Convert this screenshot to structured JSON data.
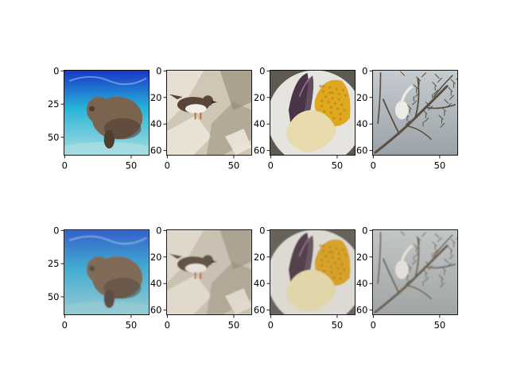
{
  "figure": {
    "rows": 2,
    "cols": 4
  },
  "chart_data": [
    {
      "type": "image",
      "content": "manatee underwater",
      "row": 1,
      "col": 1,
      "xticks": [
        "0",
        "50"
      ],
      "yticks": [
        "0",
        "25",
        "50"
      ],
      "xlim": [
        -0.5,
        63.5
      ],
      "ylim": [
        63.5,
        -0.5
      ],
      "colors": {
        "top": "#1836c8",
        "mid": "#28b4d8",
        "bottom": "#a8dce0",
        "subject": "#7a6450",
        "subject_shadow": "#4e3e30"
      }
    },
    {
      "type": "image",
      "content": "shorebird on rocks",
      "row": 1,
      "col": 2,
      "xticks": [
        "0",
        "50"
      ],
      "yticks": [
        "0",
        "20",
        "40",
        "60"
      ],
      "xlim": [
        -0.5,
        63.5
      ],
      "ylim": [
        63.5,
        -0.5
      ],
      "colors": {
        "background": "#cfc6b6",
        "rock_dark": "#8f8470",
        "rock_light": "#ece6da",
        "bird": "#5a4638",
        "bird_belly": "#f2efe8"
      }
    },
    {
      "type": "image",
      "content": "plate with food",
      "row": 1,
      "col": 3,
      "xticks": [
        "0",
        "50"
      ],
      "yticks": [
        "0",
        "20",
        "40",
        "60"
      ],
      "xlim": [
        -0.5,
        63.5
      ],
      "ylim": [
        63.5,
        -0.5
      ],
      "colors": {
        "background": "#5e5a52",
        "plate": "#e6e4de",
        "eggplant": "#4a3448",
        "corn": "#e0a820",
        "rice": "#e8dcae"
      }
    },
    {
      "type": "image",
      "content": "dry tree branches",
      "row": 1,
      "col": 4,
      "xticks": [
        "0",
        "50"
      ],
      "yticks": [
        "0",
        "20",
        "40",
        "60"
      ],
      "xlim": [
        -0.5,
        63.5
      ],
      "ylim": [
        63.5,
        -0.5
      ],
      "colors": {
        "sky": "#c6ccd0",
        "sky_bottom": "#9aa2a8",
        "branch": "#5a4e40",
        "bird": "#ecebe6"
      }
    },
    {
      "type": "image",
      "content": "manatee underwater (reconstruction)",
      "row": 2,
      "col": 1,
      "xticks": [
        "0",
        "50"
      ],
      "yticks": [
        "0",
        "25",
        "50"
      ],
      "xlim": [
        -0.5,
        63.5
      ],
      "ylim": [
        63.5,
        -0.5
      ],
      "colors": {
        "top": "#2a58c8",
        "mid": "#38a8d0",
        "bottom": "#90c8d0",
        "subject": "#7a6450",
        "subject_shadow": "#55453a"
      }
    },
    {
      "type": "image",
      "content": "shorebird on rocks (reconstruction)",
      "row": 2,
      "col": 2,
      "xticks": [
        "0",
        "50"
      ],
      "yticks": [
        "0",
        "20",
        "40",
        "60"
      ],
      "xlim": [
        -0.5,
        63.5
      ],
      "ylim": [
        63.5,
        -0.5
      ],
      "colors": {
        "background": "#cbc1b2",
        "rock_dark": "#958a78",
        "rock_light": "#e4ddd0",
        "bird": "#64524a",
        "bird_belly": "#e6e2da"
      }
    },
    {
      "type": "image",
      "content": "plate with food (reconstruction)",
      "row": 2,
      "col": 3,
      "xticks": [
        "0",
        "50"
      ],
      "yticks": [
        "0",
        "20",
        "40",
        "60"
      ],
      "xlim": [
        -0.5,
        63.5
      ],
      "ylim": [
        63.5,
        -0.5
      ],
      "colors": {
        "background": "#67625a",
        "plate": "#dcdad2",
        "eggplant": "#54404e",
        "corn": "#d6a22a",
        "rice": "#e0d6aa"
      }
    },
    {
      "type": "image",
      "content": "dry tree branches (reconstruction)",
      "row": 2,
      "col": 4,
      "xticks": [
        "0",
        "50"
      ],
      "yticks": [
        "0",
        "20",
        "40",
        "60"
      ],
      "xlim": [
        -0.5,
        63.5
      ],
      "ylim": [
        63.5,
        -0.5
      ],
      "colors": {
        "sky": "#c2c6c6",
        "sky_bottom": "#a0a4a4",
        "branch": "#6a5e50",
        "bird": "#e2e0d8"
      }
    }
  ]
}
